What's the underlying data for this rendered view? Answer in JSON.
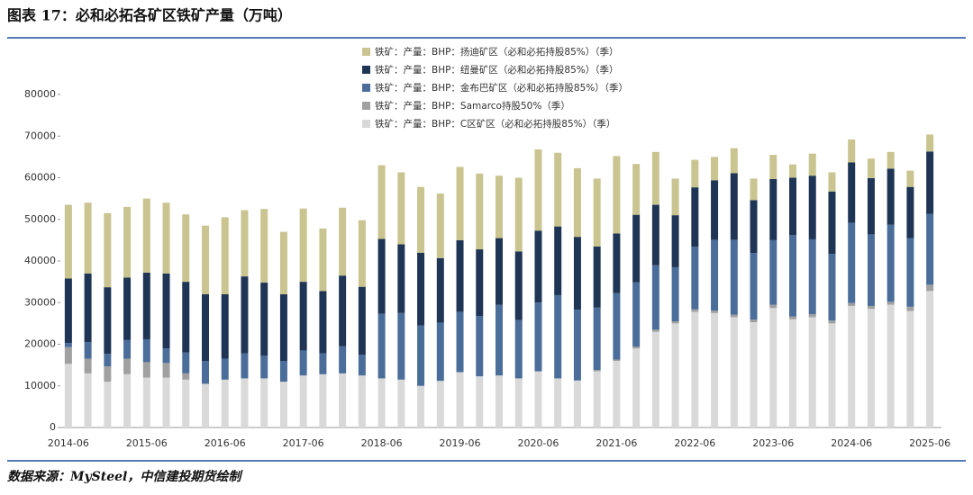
{
  "chart_data": {
    "type": "stacked_bar",
    "title": "图表 17：必和必拓各矿区铁矿产量（万吨）",
    "source": "数据来源：MySteel，中信建投期货绘制",
    "categories": [
      "2014-06",
      null,
      null,
      null,
      "2015-06",
      null,
      null,
      null,
      "2016-06",
      null,
      null,
      null,
      "2017-06",
      null,
      null,
      null,
      "2018-06",
      null,
      null,
      null,
      "2019-06",
      null,
      null,
      null,
      "2020-06",
      null,
      null,
      null,
      "2021-06",
      null,
      null,
      null,
      "2022-06",
      null,
      null,
      null,
      "2023-06",
      null,
      null,
      null,
      "2024-06",
      null,
      null,
      null,
      "2025-06"
    ],
    "series": [
      {
        "name": "铁矿：产量：BHP：C区矿区（必和必拓持股85%）（季）",
        "color": "#d9d9d9",
        "values": [
          15300,
          13000,
          11000,
          12800,
          12000,
          12000,
          11500,
          10500,
          11500,
          11800,
          11800,
          11000,
          12500,
          12800,
          13000,
          12500,
          11800,
          11500,
          10000,
          11200,
          13300,
          12300,
          12500,
          11800,
          13500,
          11800,
          11300,
          13500,
          16000,
          19000,
          23000,
          25000,
          27800,
          27500,
          26500,
          25300,
          28700,
          26000,
          26500,
          25000,
          29200,
          28500,
          29500,
          28000,
          32800
        ]
      },
      {
        "name": "铁矿：产量：BHP：Samarco持股50%（季）",
        "color": "#a0a0a0",
        "values": [
          4000,
          3500,
          3700,
          3700,
          3700,
          3500,
          1500,
          0,
          0,
          0,
          0,
          0,
          0,
          0,
          0,
          0,
          0,
          0,
          0,
          0,
          0,
          0,
          0,
          0,
          0,
          0,
          0,
          300,
          300,
          400,
          500,
          500,
          600,
          600,
          600,
          600,
          800,
          700,
          700,
          700,
          700,
          700,
          700,
          1000,
          1500
        ]
      },
      {
        "name": "铁矿：产量：BHP：金布巴矿区（必和必拓持股85%）（季）",
        "color": "#4a6d9a",
        "values": [
          1000,
          4000,
          3000,
          4500,
          5500,
          3500,
          5000,
          5500,
          5000,
          6000,
          5500,
          5000,
          6000,
          5000,
          6500,
          5000,
          15500,
          16000,
          14500,
          14000,
          14500,
          14500,
          17000,
          14000,
          16500,
          20000,
          17000,
          15000,
          16000,
          15500,
          15500,
          13000,
          15000,
          17000,
          18000,
          16000,
          15500,
          19500,
          18000,
          16000,
          19300,
          17200,
          18500,
          16500,
          17000
        ]
      },
      {
        "name": "铁矿：产量：BHP：纽曼矿区（必和必拓持股85%）（季）",
        "color": "#1f3556",
        "values": [
          15500,
          16500,
          16000,
          15000,
          16000,
          18000,
          17000,
          16000,
          15500,
          18500,
          17500,
          16000,
          16500,
          15000,
          17000,
          16300,
          18000,
          16500,
          17500,
          15500,
          17200,
          16000,
          16000,
          16500,
          17300,
          16500,
          17500,
          14700,
          14300,
          16200,
          14500,
          12500,
          14300,
          14300,
          16000,
          12700,
          14700,
          13800,
          15300,
          15000,
          14500,
          13500,
          13500,
          12300,
          15000
        ]
      },
      {
        "name": "铁矿：产量：BHP：扬迪矿区（必和必拓持股85%）（季）",
        "color": "#c9c490",
        "values": [
          17700,
          17000,
          17800,
          17000,
          17800,
          17000,
          16200,
          16500,
          18500,
          15900,
          17700,
          15000,
          17600,
          15000,
          16300,
          16000,
          17700,
          17300,
          15800,
          15500,
          17600,
          18200,
          15000,
          17700,
          19500,
          17700,
          16500,
          16300,
          18600,
          12200,
          12700,
          8800,
          6600,
          5600,
          6000,
          5200,
          5800,
          3200,
          5300,
          4600,
          5500,
          4700,
          4000,
          3900,
          4100
        ]
      }
    ],
    "ylim": [
      0,
      80000
    ],
    "yticks": [
      0,
      10000,
      20000,
      30000,
      40000,
      50000,
      60000,
      70000,
      80000
    ]
  }
}
